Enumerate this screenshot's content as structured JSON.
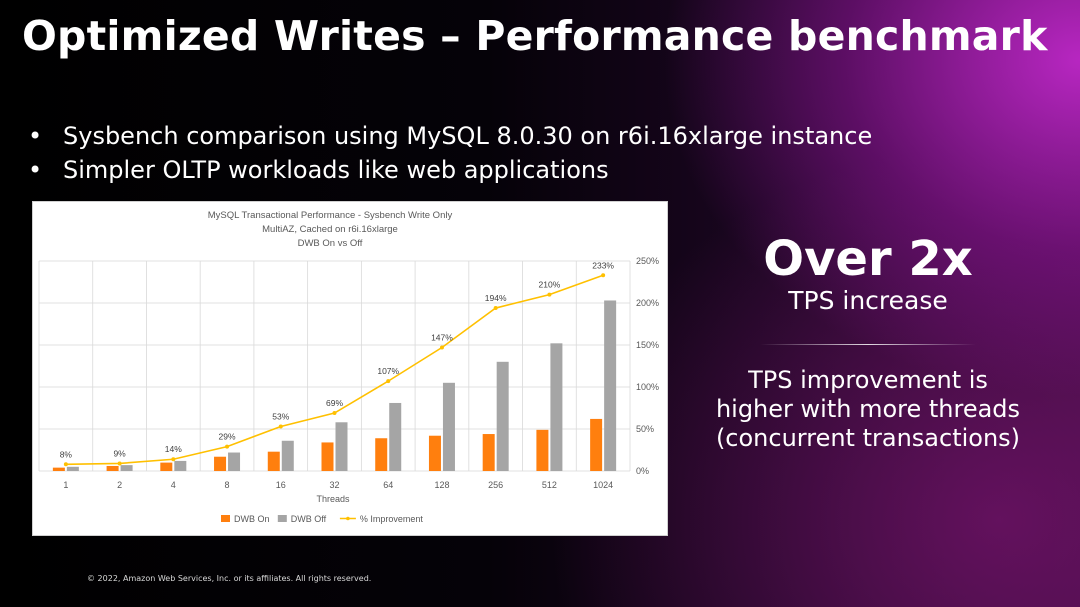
{
  "slide": {
    "title": "Optimized Writes – Performance benchmark",
    "bullets": [
      "Sysbench comparison using MySQL 8.0.30 on r6i.16xlarge instance",
      "Simpler OLTP workloads like web applications"
    ],
    "big_stat": "Over 2x",
    "big_stat_sub": "TPS increase",
    "note_lines": [
      "TPS improvement is",
      "higher with more threads",
      "(concurrent transactions)"
    ],
    "footer": "© 2022, Amazon Web Services, Inc. or its affiliates. All rights reserved."
  },
  "chart_data": {
    "type": "bar",
    "title_lines": [
      "MySQL Transactional Performance - Sysbench Write Only",
      "MultiAZ, Cached on r6i.16xlarge",
      "DWB On vs Off"
    ],
    "xlabel": "Threads",
    "categories": [
      "1",
      "2",
      "4",
      "8",
      "16",
      "32",
      "64",
      "128",
      "256",
      "512",
      "1024"
    ],
    "series": [
      {
        "name": "DWB On",
        "kind": "bar",
        "color": "#ff7f0e",
        "values": [
          4,
          6,
          10,
          17,
          23,
          34,
          39,
          42,
          44,
          49,
          62
        ]
      },
      {
        "name": "DWB Off",
        "kind": "bar",
        "color": "#a5a5a5",
        "values": [
          5,
          7,
          12,
          22,
          36,
          58,
          81,
          105,
          130,
          152,
          203
        ]
      },
      {
        "name": "% Improvement",
        "kind": "line",
        "axis": "secondary",
        "color": "#ffc000",
        "values": [
          8,
          9,
          14,
          29,
          53,
          69,
          107,
          147,
          194,
          210,
          233
        ]
      }
    ],
    "point_labels": [
      "8%",
      "9%",
      "14%",
      "29%",
      "53%",
      "69%",
      "107%",
      "147%",
      "194%",
      "210%",
      "233%"
    ],
    "y2_ticks": [
      "0%",
      "50%",
      "100%",
      "150%",
      "200%",
      "250%"
    ],
    "ylim": [
      0,
      250
    ],
    "y2lim": [
      0,
      250
    ],
    "grid": true,
    "legend": "bottom"
  }
}
